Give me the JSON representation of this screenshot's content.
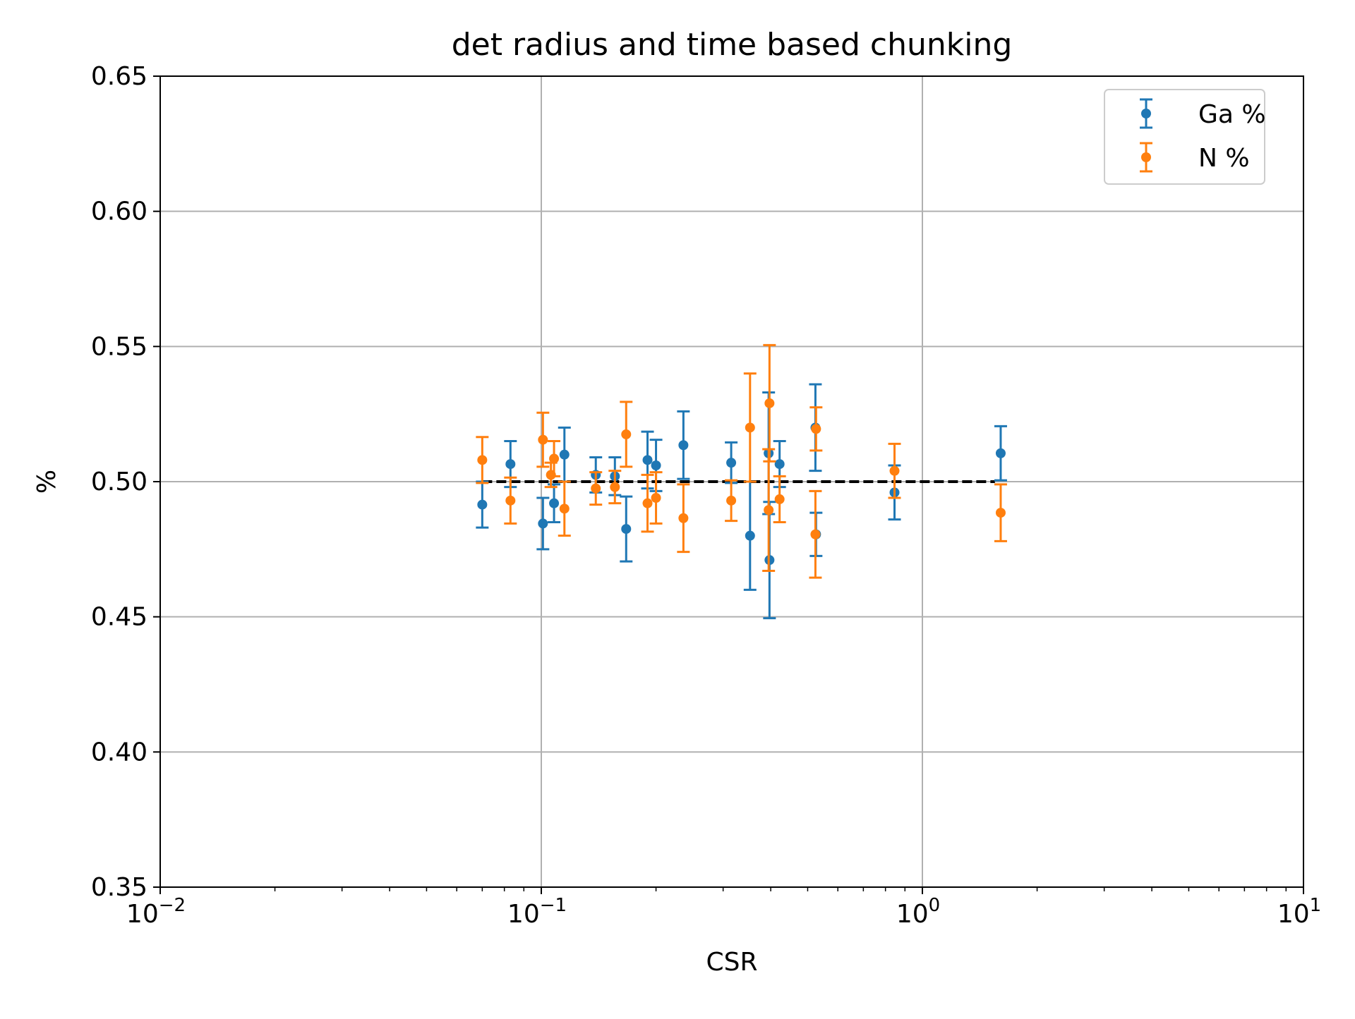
{
  "chart_data": {
    "type": "scatter",
    "title": "det radius and time based chunking",
    "xlabel": "CSR",
    "ylabel": "%",
    "xscale": "log",
    "xlim": [
      0.01,
      10
    ],
    "ylim": [
      0.35,
      0.65
    ],
    "x_ticks": [
      {
        "value": 0.01,
        "base": "10",
        "exp": "−2"
      },
      {
        "value": 0.1,
        "base": "10",
        "exp": "−1"
      },
      {
        "value": 1,
        "base": "10",
        "exp": "0"
      },
      {
        "value": 10,
        "base": "10",
        "exp": "1"
      }
    ],
    "y_ticks": [
      {
        "value": 0.35,
        "label": "0.35"
      },
      {
        "value": 0.4,
        "label": "0.40"
      },
      {
        "value": 0.45,
        "label": "0.45"
      },
      {
        "value": 0.5,
        "label": "0.50"
      },
      {
        "value": 0.55,
        "label": "0.55"
      },
      {
        "value": 0.6,
        "label": "0.60"
      },
      {
        "value": 0.65,
        "label": "0.65"
      }
    ],
    "grid": true,
    "legend_position": "top-right",
    "reference_line": {
      "y": 0.5,
      "x_range": [
        0.07,
        1.55
      ],
      "style": "dashed",
      "color": "#000000"
    },
    "series": [
      {
        "name": "Ga %",
        "color": "#1f77b4",
        "points": [
          {
            "x": 0.07,
            "y": 0.4915,
            "err": 0.0085
          },
          {
            "x": 0.083,
            "y": 0.5065,
            "err": 0.0085
          },
          {
            "x": 0.101,
            "y": 0.4845,
            "err": 0.0095
          },
          {
            "x": 0.108,
            "y": 0.492,
            "err": 0.007
          },
          {
            "x": 0.115,
            "y": 0.51,
            "err": 0.01
          },
          {
            "x": 0.139,
            "y": 0.5025,
            "err": 0.0065
          },
          {
            "x": 0.156,
            "y": 0.502,
            "err": 0.007
          },
          {
            "x": 0.167,
            "y": 0.4825,
            "err": 0.012
          },
          {
            "x": 0.19,
            "y": 0.508,
            "err": 0.0105
          },
          {
            "x": 0.2,
            "y": 0.506,
            "err": 0.0095
          },
          {
            "x": 0.236,
            "y": 0.5135,
            "err": 0.0125
          },
          {
            "x": 0.315,
            "y": 0.507,
            "err": 0.0075
          },
          {
            "x": 0.353,
            "y": 0.48,
            "err": 0.02
          },
          {
            "x": 0.395,
            "y": 0.5105,
            "err": 0.0225
          },
          {
            "x": 0.397,
            "y": 0.471,
            "err": 0.0215
          },
          {
            "x": 0.422,
            "y": 0.5065,
            "err": 0.0085
          },
          {
            "x": 0.524,
            "y": 0.52,
            "err": 0.016
          },
          {
            "x": 0.526,
            "y": 0.4805,
            "err": 0.008
          },
          {
            "x": 0.845,
            "y": 0.496,
            "err": 0.01
          },
          {
            "x": 1.605,
            "y": 0.5105,
            "err": 0.01
          }
        ]
      },
      {
        "name": "N %",
        "color": "#ff7f0e",
        "points": [
          {
            "x": 0.07,
            "y": 0.508,
            "err": 0.0085
          },
          {
            "x": 0.083,
            "y": 0.493,
            "err": 0.0085
          },
          {
            "x": 0.101,
            "y": 0.5155,
            "err": 0.01
          },
          {
            "x": 0.106,
            "y": 0.5025,
            "err": 0.0045
          },
          {
            "x": 0.108,
            "y": 0.5085,
            "err": 0.0065
          },
          {
            "x": 0.115,
            "y": 0.49,
            "err": 0.01
          },
          {
            "x": 0.139,
            "y": 0.4975,
            "err": 0.006
          },
          {
            "x": 0.156,
            "y": 0.498,
            "err": 0.006
          },
          {
            "x": 0.167,
            "y": 0.5175,
            "err": 0.012
          },
          {
            "x": 0.19,
            "y": 0.492,
            "err": 0.0105
          },
          {
            "x": 0.2,
            "y": 0.494,
            "err": 0.0095
          },
          {
            "x": 0.236,
            "y": 0.4865,
            "err": 0.0125
          },
          {
            "x": 0.315,
            "y": 0.493,
            "err": 0.0075
          },
          {
            "x": 0.353,
            "y": 0.52,
            "err": 0.02
          },
          {
            "x": 0.395,
            "y": 0.4895,
            "err": 0.0225
          },
          {
            "x": 0.397,
            "y": 0.529,
            "err": 0.0215
          },
          {
            "x": 0.422,
            "y": 0.4935,
            "err": 0.0085
          },
          {
            "x": 0.524,
            "y": 0.4805,
            "err": 0.016
          },
          {
            "x": 0.526,
            "y": 0.5195,
            "err": 0.008
          },
          {
            "x": 0.845,
            "y": 0.504,
            "err": 0.01
          },
          {
            "x": 1.605,
            "y": 0.4885,
            "err": 0.0105
          }
        ]
      }
    ]
  }
}
